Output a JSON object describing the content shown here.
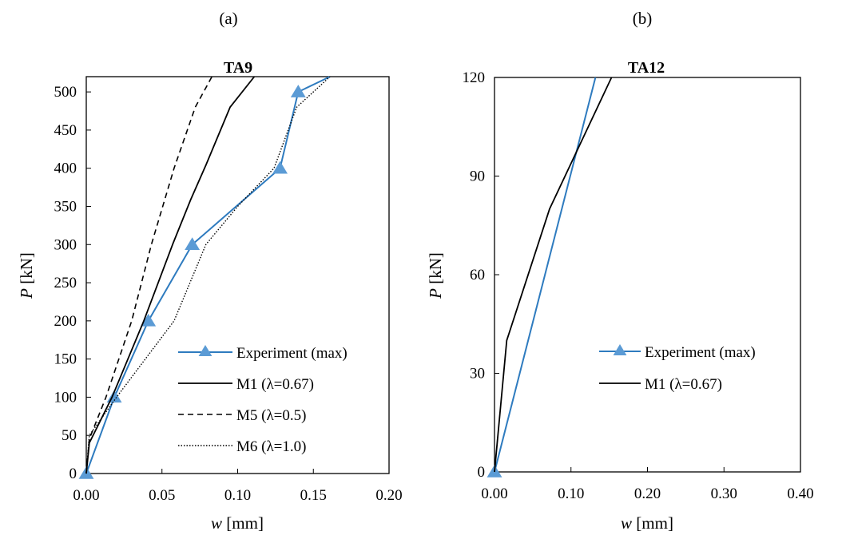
{
  "colors": {
    "experiment_line": "#2E7BBF",
    "experiment_marker": "#5B9BD5",
    "model": "#000000",
    "frame": "#000000"
  },
  "chart_data": [
    {
      "type": "line",
      "panel_label": "(a)",
      "title": "TA9",
      "xlabel_var": "w",
      "xlabel_unit": " [mm]",
      "ylabel_var": "P",
      "ylabel_unit": " [kN]",
      "xlim": [
        0,
        0.2
      ],
      "ylim": [
        0,
        520
      ],
      "xticks": [
        0,
        0.05,
        0.1,
        0.15,
        0.2
      ],
      "xtick_labels": [
        "0.00",
        "0.05",
        "0.10",
        "0.15",
        "0.20"
      ],
      "yticks": [
        0,
        50,
        100,
        150,
        200,
        250,
        300,
        350,
        400,
        450,
        500
      ],
      "ytick_labels": [
        "0",
        "50",
        "100",
        "150",
        "200",
        "250",
        "300",
        "350",
        "400",
        "450",
        "500"
      ],
      "grid": false,
      "legend_position": "bottom-right",
      "series": [
        {
          "name": "Experiment (max)",
          "style": "solid-marker",
          "x": [
            0,
            0.0185,
            0.041,
            0.07,
            0.128,
            0.14,
            0.161
          ],
          "y": [
            0,
            100,
            200,
            300,
            400,
            500,
            520
          ],
          "markers": [
            true,
            true,
            true,
            true,
            true,
            true,
            false
          ]
        },
        {
          "name": "M1 (λ=0.67)",
          "style": "solid",
          "x": [
            0,
            0.002,
            0.017,
            0.038,
            0.057,
            0.069,
            0.079,
            0.095,
            0.111
          ],
          "y": [
            0,
            40,
            100,
            200,
            300,
            359,
            404,
            480,
            520
          ]
        },
        {
          "name": "M5 (λ=0.5)",
          "style": "dashed",
          "x": [
            0,
            0.002,
            0.013,
            0.03,
            0.043,
            0.058,
            0.072,
            0.083
          ],
          "y": [
            0,
            45,
            100,
            200,
            300,
            400,
            480,
            520
          ]
        },
        {
          "name": "M6 (λ=1.0)",
          "style": "dotted",
          "x": [
            0,
            0.002,
            0.02,
            0.058,
            0.079,
            0.1,
            0.124,
            0.139,
            0.161
          ],
          "y": [
            0,
            50,
            100,
            200,
            300,
            350,
            400,
            480,
            520
          ]
        }
      ]
    },
    {
      "type": "line",
      "panel_label": "(b)",
      "title": "TA12",
      "xlabel_var": "w",
      "xlabel_unit": " [mm]",
      "ylabel_var": "P",
      "ylabel_unit": " [kN]",
      "xlim": [
        0,
        0.4
      ],
      "ylim": [
        0,
        120
      ],
      "xticks": [
        0,
        0.1,
        0.2,
        0.3,
        0.4
      ],
      "xtick_labels": [
        "0.00",
        "0.10",
        "0.20",
        "0.30",
        "0.40"
      ],
      "yticks": [
        0,
        30,
        60,
        90,
        120
      ],
      "ytick_labels": [
        "0",
        "30",
        "60",
        "90",
        "120"
      ],
      "grid": false,
      "legend_position": "center-right",
      "series": [
        {
          "name": "Experiment (max)",
          "style": "solid-marker",
          "x": [
            0,
            0.132
          ],
          "y": [
            0,
            120
          ],
          "markers": [
            true,
            false
          ]
        },
        {
          "name": "M1 (λ=0.67)",
          "style": "solid",
          "x": [
            0,
            0.016,
            0.072,
            0.153
          ],
          "y": [
            0,
            40,
            80,
            120
          ]
        }
      ]
    }
  ]
}
